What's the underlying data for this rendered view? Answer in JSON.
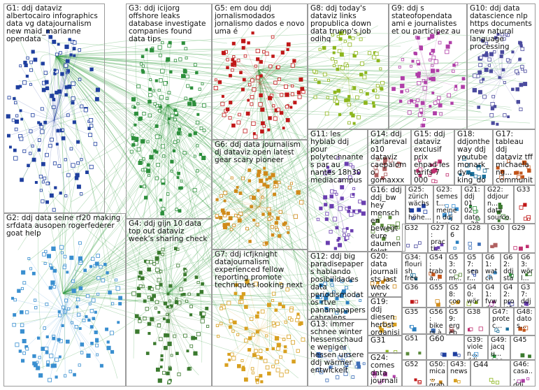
{
  "groups": [
    "G1: ddj dataviz albertocairo infographics data vg datajournalism new maid_marianne opendata",
    "G2: ddj data seine rf20 making srfdata ausopen rogerfederer goat help",
    "G3: ddj icijorg offshore leaks database investigate companies found data tips",
    "G4: ddj gijn 10 data top out dataviz week's sharing check",
    "G5: em dou ddj jornalismodados jornalismo dados e novo uma é",
    "G6: ddj data journalism dj dataviz open latest gear scary pioneer",
    "G7: ddj icfjknight datajournalism experienced fellow reporting promote techniques looking next",
    "G8: ddj today's dataviz links propublica down data trump's job odihq",
    "G9: ddj s stateofopendata ami e journalistes et ou participez au",
    "G10: ddj data datascience nlp https documents new natural language processing",
    "G11: les hyblab ddj pour polytechnantes par au nantes 18h30 mediacampus",
    "G12: ddj big paradisepapers hablando posibilidades data periodismodatos rtve panamapapers cabralens",
    "G13: immer schnee winter hessenschaude weniger hessen unsere ddj wärmer entwickelt",
    "G14: ddj karlarevalo10 dataviz caepalomo gomaxxx datajournalism quiénes...",
    "G15: ddj dataviz exclusif prix ehpad les tarifs 7 000 d'établissem...",
    "G18: ddjontheway ddj youtube monark_dy... king_dom_x monarkdym... kingdomx...",
    "G17: tableau ddj dataviz tff michaelang... community spotlight interview...",
    "G16: ddj ddj_bw hey menschen bewegt eure daumen folgt...",
    "G25: zürich wächst höhe...",
    "G23: semest... meinen ddj kurs...",
    "G21: ddj 01 02 date... 30 3 03...",
    "G22: ddjourn... data sourco...",
    "G33",
    "G20: data journalists last week very samberk... joined...",
    "G19: ddj diesen herbst organisiert mazluzern einen...",
    "G31",
    "G24: comes data journalis...",
    "G32",
    "G27: practi... djkas... djshel...",
    "G26",
    "G28",
    "G30",
    "G29",
    "G34: flourish free newsr...",
    "G54: traba... progr...",
    "G53: com... ndu...",
    "G57: sear... ope...",
    "G61: watch inco...",
    "G62: ddj star...",
    "G63: wörl... date...",
    "G36",
    "G55",
    "G58: cool denn...",
    "G40: wör... m...",
    "G41: fvw dest...",
    "G42: projet ddj pré...",
    "G37: ddjb ang...",
    "G35",
    "G56: bikers à les",
    "G59: ergeb btw1...",
    "G38",
    "G47: protec...",
    "G48: datos...",
    "G51",
    "G60",
    "G39: violen... ddj...",
    "G49: jacqu... anc...",
    "G45",
    "G52",
    "G50: mica... graba...",
    "G43: news",
    "G44",
    "G46: casa... ddj..."
  ]
}
